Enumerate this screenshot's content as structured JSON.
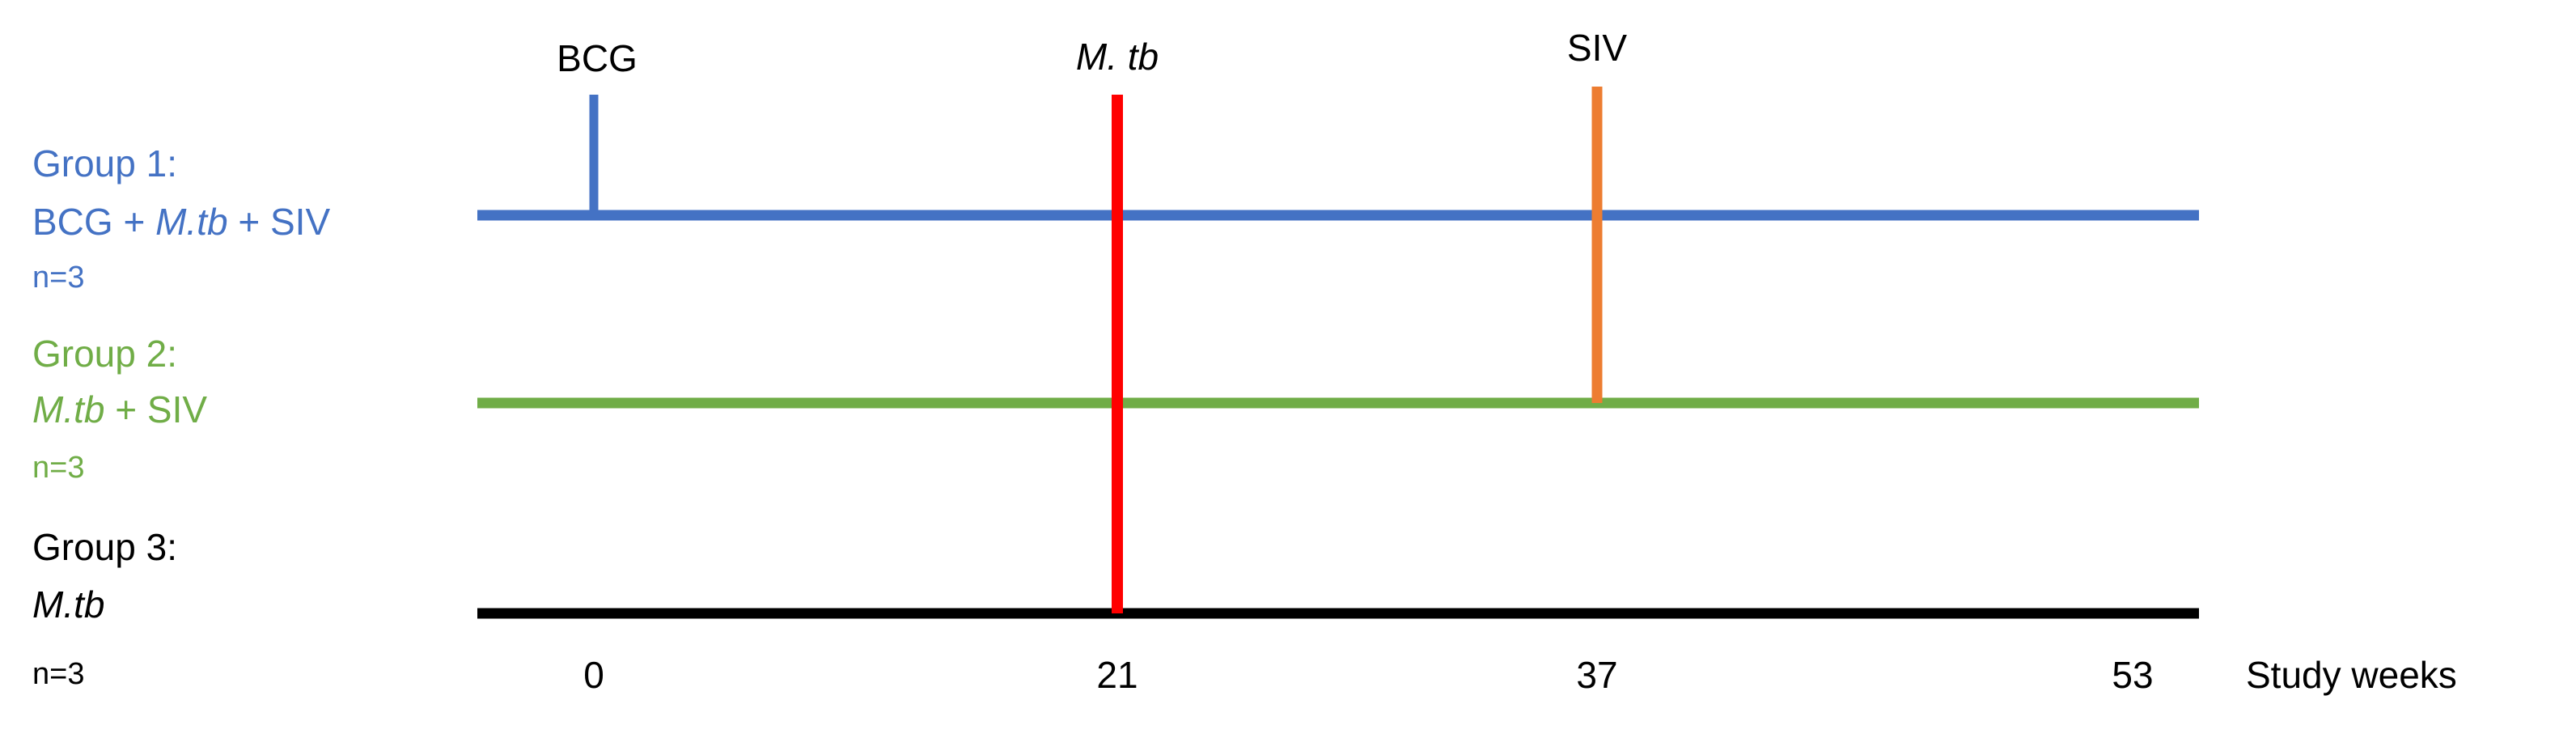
{
  "colors": {
    "group1": "#4472c4",
    "group2": "#70ad47",
    "group3": "#000000",
    "mtb_event": "#ff0000",
    "siv_event": "#ed7d31",
    "bcg_event": "#4472c4"
  },
  "groups": [
    {
      "title": "Group 1:",
      "line2": [
        {
          "text": "BCG + ",
          "italic": false
        },
        {
          "text": "M.tb",
          "italic": true
        },
        {
          "text": " + SIV",
          "italic": false
        }
      ],
      "n": "n=3"
    },
    {
      "title": "Group 2:",
      "line2": [
        {
          "text": "M.tb",
          "italic": true
        },
        {
          "text": " + SIV",
          "italic": false
        }
      ],
      "n": "n=3"
    },
    {
      "title": "Group 3:",
      "line2": [
        {
          "text": "M.tb",
          "italic": true
        }
      ],
      "n": "n=3"
    }
  ],
  "events": [
    {
      "label": "BCG",
      "italic": false,
      "week": 0
    },
    {
      "label": "M. tb",
      "italic": true,
      "week": 21
    },
    {
      "label": "SIV",
      "italic": false,
      "week": 37
    }
  ],
  "axis": {
    "ticks": [
      "0",
      "21",
      "37",
      "53"
    ],
    "unit_label": "Study weeks"
  }
}
